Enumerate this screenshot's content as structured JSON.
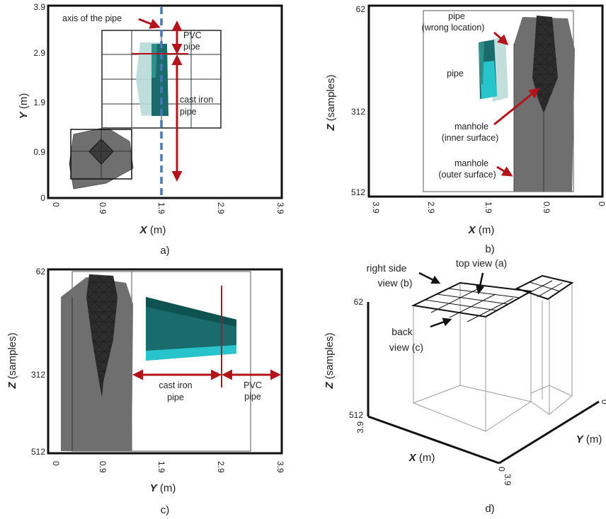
{
  "panel_a": {
    "caption": "a)",
    "ticks_y": [
      "3.9",
      "2.9",
      "1.9",
      "0.9",
      "0"
    ],
    "ticks_x": [
      "0",
      "0.9",
      "1.9",
      "2.9",
      "3.9"
    ],
    "xlabel_var": "X",
    "xlabel_unit": " (m)",
    "ylabel_var": "Y",
    "ylabel_unit": " (m)",
    "ann_axis": "axis of the pipe",
    "ann_pvc_1": "PVC",
    "ann_pvc_2": "pipe",
    "ann_ci_1": "cast iron",
    "ann_ci_2": "pipe"
  },
  "panel_b": {
    "caption": "b)",
    "ticks_z": [
      "62",
      "312",
      "512"
    ],
    "ticks_x": [
      "3.9",
      "2.9",
      "1.9",
      "0.9",
      "0"
    ],
    "xlabel_var": "X",
    "xlabel_unit": " (m)",
    "zlabel_var": "Z",
    "zlabel_unit": " (samples)",
    "ann_pipe_wrong_1": "pipe",
    "ann_pipe_wrong_2": "(wrong location)",
    "ann_pipe": "pipe",
    "ann_mh_inner_1": "manhole",
    "ann_mh_inner_2": "(inner surface)",
    "ann_mh_outer_1": "manhole",
    "ann_mh_outer_2": "(outer surface)"
  },
  "panel_c": {
    "caption": "c)",
    "ticks_z": [
      "62",
      "312",
      "512"
    ],
    "ticks_y": [
      "0",
      "0.9",
      "1.9",
      "2.9",
      "3.9"
    ],
    "ylabel_var": "Y",
    "ylabel_unit": " (m)",
    "zlabel_var": "Z",
    "zlabel_unit": " (samples)",
    "ann_ci_1": "cast iron",
    "ann_ci_2": "pipe",
    "ann_pvc_1": "PVC",
    "ann_pvc_2": "pipe"
  },
  "panel_d": {
    "caption": "d)",
    "ticks_z": [
      "62",
      "512"
    ],
    "tick_x_39": "3.9",
    "tick_y_0_bottom": "0",
    "tick_y_39": "3.9",
    "tick_right_0": "0",
    "xlabel_var": "X",
    "xlabel_unit": " (m)",
    "ylabel_var": "Y",
    "ylabel_unit": " (m)",
    "zlabel_var": "Z",
    "zlabel_unit": " (samples)",
    "ann_right_1": "right side",
    "ann_right_2": "view (b)",
    "ann_top": "top view (a)",
    "ann_back_1": "back",
    "ann_back_2": "view (c)"
  },
  "colors": {
    "arrow_red": "#b3131b",
    "axis_dash_blue": "#4a78b5",
    "manhole_gray": "#6f6f6f",
    "pipe_teal": "#1a6b6b",
    "pipe_cyan": "#27c4cc",
    "ghost_teal": "#b8d9d6"
  }
}
